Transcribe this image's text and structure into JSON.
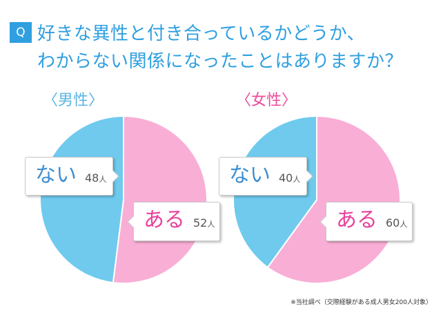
{
  "question": {
    "badge": "Q",
    "line1": "好きな異性と付き合っているかどうか、",
    "line2": "わからない関係になったことはありますか？"
  },
  "colors": {
    "accent": "#2f9fe0",
    "pink": "#f9aed6",
    "blue": "#6fcaee",
    "female_label": "#ee4a9a",
    "male_label": "#5bb4e3"
  },
  "chart_data": [
    {
      "type": "pie",
      "title": "〈男性〉",
      "slices": [
        {
          "label": "ある",
          "value": 52,
          "unit": "人",
          "color": "#f9aed6"
        },
        {
          "label": "ない",
          "value": 48,
          "unit": "人",
          "color": "#6fcaee"
        }
      ]
    },
    {
      "type": "pie",
      "title": "〈女性〉",
      "slices": [
        {
          "label": "ある",
          "value": 60,
          "unit": "人",
          "color": "#f9aed6"
        },
        {
          "label": "ない",
          "value": 40,
          "unit": "人",
          "color": "#6fcaee"
        }
      ]
    }
  ],
  "footnote": "※当社調べ（交際経験がある成人男女200人対象）"
}
